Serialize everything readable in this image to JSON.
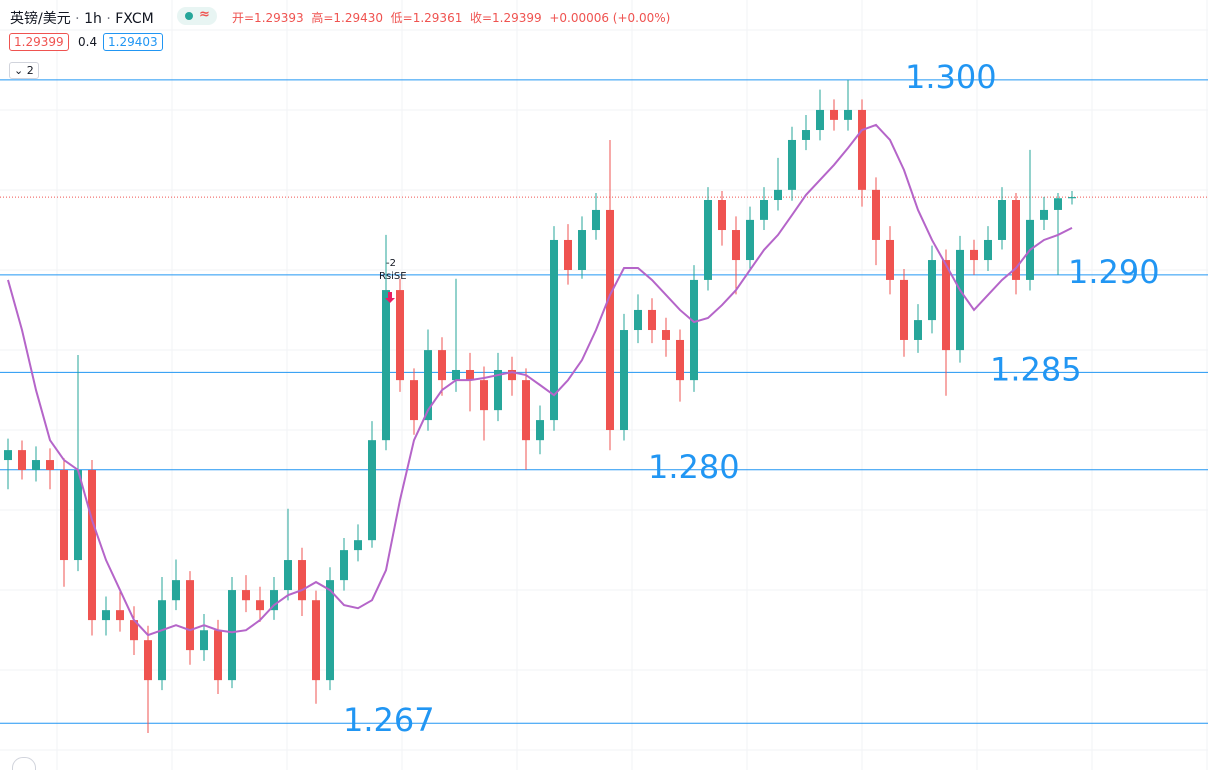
{
  "toolbar": {
    "symbol": "英镑/美元",
    "interval": "1h",
    "source": "FXCM",
    "ohlc": [
      "开=1.29393",
      "高=1.29430",
      "低=1.29361",
      "收=1.29399",
      "+0.00006 (+0.00%)"
    ],
    "bid": "1.29399",
    "spread": "0.4",
    "ask": "1.29403",
    "collapse": "2"
  },
  "chart_data": {
    "type": "candlestick",
    "ylim": [
      1.2646,
      1.3041
    ],
    "up_color": "#26a69a",
    "down_color": "#ef5350",
    "open": [
      1.2805,
      1.28101,
      1.27999,
      1.2805,
      1.27999,
      1.27537,
      1.27999,
      1.27229,
      1.2728,
      1.27229,
      1.27126,
      1.26921,
      1.27331,
      1.27434,
      1.27075,
      1.27177,
      1.26921,
      1.27383,
      1.27331,
      1.2728,
      1.27383,
      1.27537,
      1.27331,
      1.26921,
      1.27434,
      1.27588,
      1.27639,
      1.28152,
      1.28922,
      1.2846,
      1.28255,
      1.28614,
      1.2846,
      1.28512,
      1.2846,
      1.28306,
      1.28512,
      1.2846,
      1.28152,
      1.28255,
      1.29179,
      1.29025,
      1.2923,
      1.29333,
      1.28204,
      1.28717,
      1.2882,
      1.28717,
      1.28666,
      1.2846,
      1.28974,
      1.29384,
      1.2923,
      1.29076,
      1.29282,
      1.29384,
      1.29436,
      1.29692,
      1.29743,
      1.29846,
      1.29795,
      1.29846,
      1.29436,
      1.29179,
      1.28974,
      1.28666,
      1.28768,
      1.29076,
      1.28614,
      1.29128,
      1.29076,
      1.29179,
      1.29384,
      1.28974,
      1.29282,
      1.29333,
      1.29393
    ],
    "high": [
      1.2816,
      1.2815,
      1.2812,
      1.2811,
      1.2806,
      1.28589,
      1.2805,
      1.2735,
      1.2738,
      1.273,
      1.272,
      1.2745,
      1.2754,
      1.2748,
      1.2726,
      1.2723,
      1.2745,
      1.2746,
      1.274,
      1.2745,
      1.278,
      1.276,
      1.2738,
      1.275,
      1.2765,
      1.2772,
      1.2825,
      1.29205,
      1.2898,
      1.2852,
      1.2872,
      1.2868,
      1.2898,
      1.286,
      1.2853,
      1.286,
      1.2858,
      1.2852,
      1.2833,
      1.2925,
      1.2926,
      1.293,
      1.2942,
      1.29692,
      1.288,
      1.289,
      1.2888,
      1.2878,
      1.2872,
      1.2905,
      1.2945,
      1.2943,
      1.293,
      1.2935,
      1.2945,
      1.296,
      1.2976,
      1.2982,
      1.2995,
      1.299,
      1.3,
      1.299,
      1.295,
      1.2925,
      1.2903,
      1.2885,
      1.2915,
      1.2913,
      1.292,
      1.2918,
      1.2925,
      1.2945,
      1.2942,
      1.29641,
      1.294,
      1.2942,
      1.2943
    ],
    "low": [
      1.279,
      1.2795,
      1.2794,
      1.279,
      1.274,
      1.2748,
      1.2715,
      1.2715,
      1.2717,
      1.2705,
      1.2665,
      1.2687,
      1.2728,
      1.27,
      1.2702,
      1.2685,
      1.2688,
      1.2727,
      1.2722,
      1.2723,
      1.2733,
      1.2725,
      1.268,
      1.2687,
      1.2738,
      1.2753,
      1.276,
      1.281,
      1.284,
      1.2818,
      1.282,
      1.2838,
      1.284,
      1.283,
      1.2815,
      1.2825,
      1.2838,
      1.28,
      1.2808,
      1.282,
      1.2895,
      1.2898,
      1.2918,
      1.281,
      1.2815,
      1.2865,
      1.2865,
      1.2858,
      1.2835,
      1.284,
      1.2892,
      1.2915,
      1.289,
      1.2902,
      1.2923,
      1.2933,
      1.2938,
      1.2964,
      1.2969,
      1.2974,
      1.2974,
      1.2935,
      1.2905,
      1.289,
      1.2858,
      1.286,
      1.287,
      1.2838,
      1.2855,
      1.29,
      1.2902,
      1.2913,
      1.289,
      1.2892,
      1.2923,
      1.29,
      1.29361
    ],
    "close": [
      1.28101,
      1.27999,
      1.2805,
      1.27999,
      1.27537,
      1.27999,
      1.27229,
      1.2728,
      1.27229,
      1.27126,
      1.26921,
      1.27331,
      1.27434,
      1.27075,
      1.27177,
      1.26921,
      1.27383,
      1.27331,
      1.2728,
      1.27383,
      1.27537,
      1.27331,
      1.26921,
      1.27434,
      1.27588,
      1.27639,
      1.28152,
      1.28922,
      1.2846,
      1.28255,
      1.28614,
      1.2846,
      1.28512,
      1.2846,
      1.28306,
      1.28512,
      1.2846,
      1.28152,
      1.28255,
      1.29179,
      1.29025,
      1.2923,
      1.29333,
      1.28204,
      1.28717,
      1.2882,
      1.28717,
      1.28666,
      1.2846,
      1.28974,
      1.29384,
      1.2923,
      1.29076,
      1.29282,
      1.29384,
      1.29436,
      1.29692,
      1.29743,
      1.29846,
      1.29795,
      1.29846,
      1.29436,
      1.29179,
      1.28974,
      1.28666,
      1.28768,
      1.29076,
      1.28614,
      1.29128,
      1.29076,
      1.29179,
      1.29384,
      1.28974,
      1.29282,
      1.29333,
      1.29393,
      1.29399
    ],
    "ma": {
      "color": "#b565c9",
      "values": [
        1.28974,
        1.28717,
        1.28409,
        1.28152,
        1.2805,
        1.27999,
        1.27742,
        1.27537,
        1.27383,
        1.27229,
        1.27152,
        1.27177,
        1.27203,
        1.27177,
        1.27203,
        1.27177,
        1.27167,
        1.27177,
        1.27229,
        1.27306,
        1.27357,
        1.27383,
        1.27424,
        1.27383,
        1.27306,
        1.2729,
        1.27331,
        1.27485,
        1.27845,
        1.28152,
        1.28306,
        1.28409,
        1.2846,
        1.2846,
        1.28471,
        1.28486,
        1.28501,
        1.28486,
        1.28435,
        1.28383,
        1.2846,
        1.28563,
        1.28717,
        1.28897,
        1.29035,
        1.29035,
        1.28974,
        1.28897,
        1.2882,
        1.28758,
        1.28779,
        1.28845,
        1.28922,
        1.29025,
        1.29128,
        1.29205,
        1.29307,
        1.2941,
        1.29487,
        1.29564,
        1.29651,
        1.29743,
        1.29769,
        1.29692,
        1.29538,
        1.29333,
        1.29179,
        1.29051,
        1.28922,
        1.2882,
        1.28897,
        1.28974,
        1.29035,
        1.29128,
        1.29179,
        1.29205,
        1.29241
      ]
    },
    "levels": {
      "color": "#2196f3",
      "values": [
        {
          "value": 1.3,
          "label": "1.300"
        },
        {
          "value": 1.29,
          "label": "1.290"
        },
        {
          "value": 1.285,
          "label": "1.285"
        },
        {
          "value": 1.28,
          "label": "1.280"
        },
        {
          "value": 1.267,
          "label": "1.267"
        }
      ]
    },
    "annotations": [
      "-2",
      "RsiSE"
    ]
  }
}
